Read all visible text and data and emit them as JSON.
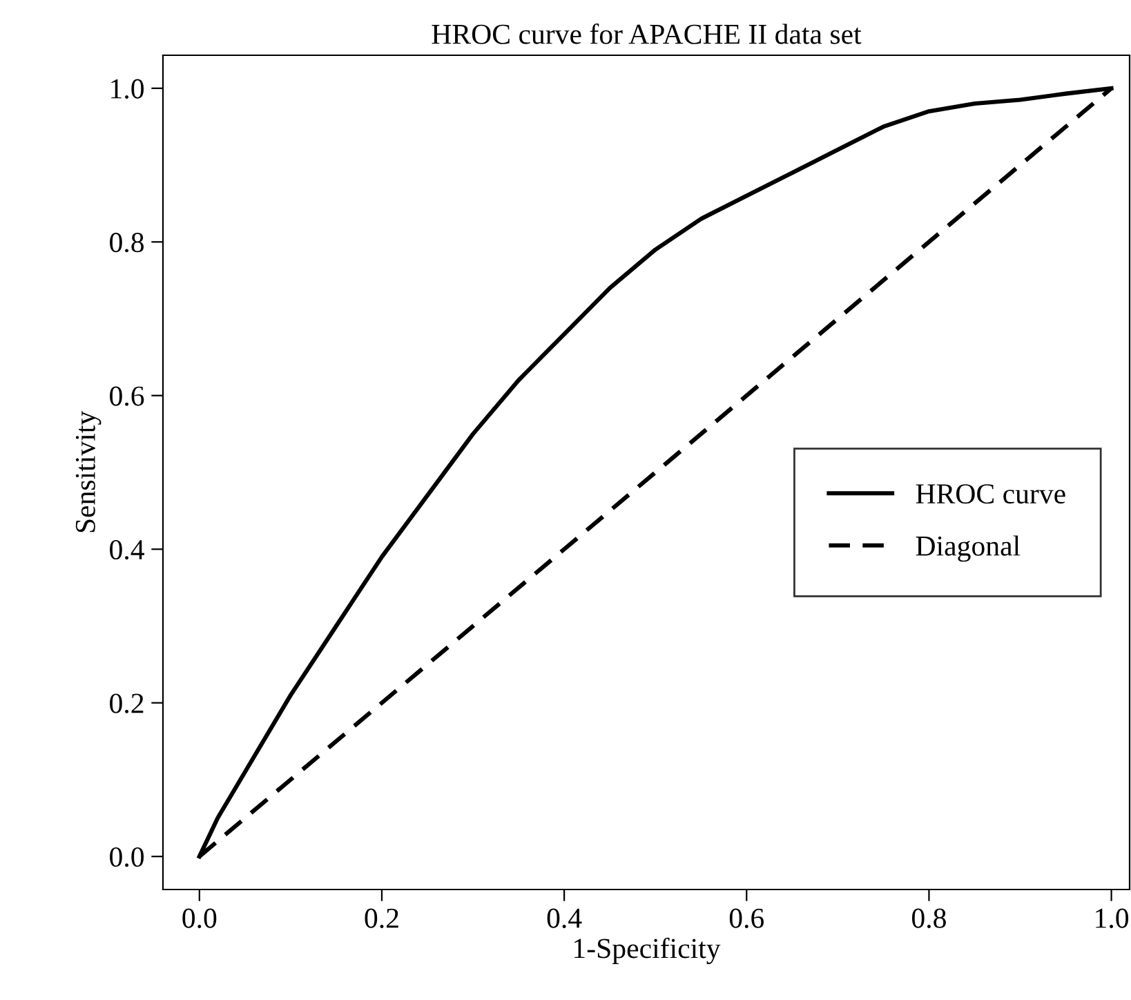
{
  "chart_data": {
    "type": "line",
    "title": "HROC curve for APACHE II data set",
    "xlabel": "1-Specificity",
    "ylabel": "Sensitivity",
    "series": [
      {
        "name": "HROC curve",
        "color": "#000000",
        "line_style": "solid",
        "x": [
          0,
          0.02,
          0.05,
          0.1,
          0.15,
          0.2,
          0.25,
          0.3,
          0.35,
          0.4,
          0.45,
          0.5,
          0.55,
          0.6,
          0.65,
          0.7,
          0.75,
          0.8,
          0.85,
          0.9,
          0.95,
          1.0
        ],
        "values": [
          0,
          0.05,
          0.11,
          0.21,
          0.3,
          0.39,
          0.47,
          0.55,
          0.62,
          0.68,
          0.74,
          0.79,
          0.83,
          0.86,
          0.89,
          0.92,
          0.95,
          0.97,
          0.98,
          0.985,
          0.993,
          1.0
        ]
      },
      {
        "name": "Diagonal",
        "color": "#000000",
        "line_style": "dashed",
        "x": [
          0,
          1
        ],
        "values": [
          0,
          1
        ]
      }
    ],
    "xlim": [
      -0.04,
      1.02
    ],
    "ylim": [
      -0.043,
      1.043
    ],
    "xticks": [
      {
        "value": 0,
        "label": "0.0"
      },
      {
        "value": 0.2,
        "label": "0.2"
      },
      {
        "value": 0.4,
        "label": "0.4"
      },
      {
        "value": 0.6,
        "label": "0.6"
      },
      {
        "value": 0.8,
        "label": "0.8"
      },
      {
        "value": 1,
        "label": "1.0"
      }
    ],
    "yticks": [
      {
        "value": 0,
        "label": "0.0"
      },
      {
        "value": 0.2,
        "label": "0.2"
      },
      {
        "value": 0.4,
        "label": "0.4"
      },
      {
        "value": 0.6,
        "label": "0.6"
      },
      {
        "value": 0.8,
        "label": "0.8"
      },
      {
        "value": 1,
        "label": "1.0"
      }
    ],
    "grid": false,
    "legend": "right",
    "marker": "none"
  }
}
